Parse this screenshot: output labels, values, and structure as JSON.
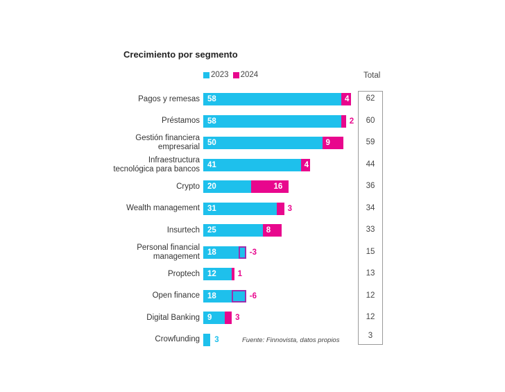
{
  "chart_data": {
    "type": "bar",
    "orientation": "horizontal-stacked",
    "title": "Crecimiento por segmento",
    "legend": [
      {
        "name": "2023",
        "color": "#1ec0ec"
      },
      {
        "name": "2024",
        "color": "#e8078d"
      }
    ],
    "legend_position": "top",
    "total_header": "Total",
    "categories": [
      "Pagos y remesas",
      "Préstamos",
      "Gestión financiera empresarial",
      "Infraestructura tecnológica para bancos",
      "Crypto",
      "Wealth management",
      "Insurtech",
      "Personal financial management",
      "Proptech",
      "Open finance",
      "Digital Banking",
      "Crowfunding"
    ],
    "category_lines": [
      [
        "Pagos y remesas"
      ],
      [
        "Préstamos"
      ],
      [
        "Gestión financiera",
        "empresarial"
      ],
      [
        "Infraestructura",
        "tecnológica para bancos"
      ],
      [
        "Crypto"
      ],
      [
        "Wealth management"
      ],
      [
        "Insurtech"
      ],
      [
        "Personal financial",
        "management"
      ],
      [
        "Proptech"
      ],
      [
        "Open finance"
      ],
      [
        "Digital Banking"
      ],
      [
        "Crowfunding"
      ]
    ],
    "series": [
      {
        "name": "2023",
        "values": [
          58,
          58,
          50,
          41,
          20,
          31,
          25,
          18,
          12,
          18,
          9,
          null
        ]
      },
      {
        "name": "2024",
        "values": [
          4,
          2,
          9,
          4,
          16,
          3,
          8,
          -3,
          1,
          -6,
          3,
          3
        ]
      }
    ],
    "totals": [
      62,
      60,
      59,
      44,
      36,
      34,
      33,
      15,
      13,
      12,
      12,
      3
    ],
    "annotation": "Fuente: Finnovista, datos propios",
    "colors": {
      "c2023": "#1ec0ec",
      "c2024": "#e8078d",
      "negative_outline": "#9b2fae"
    }
  }
}
